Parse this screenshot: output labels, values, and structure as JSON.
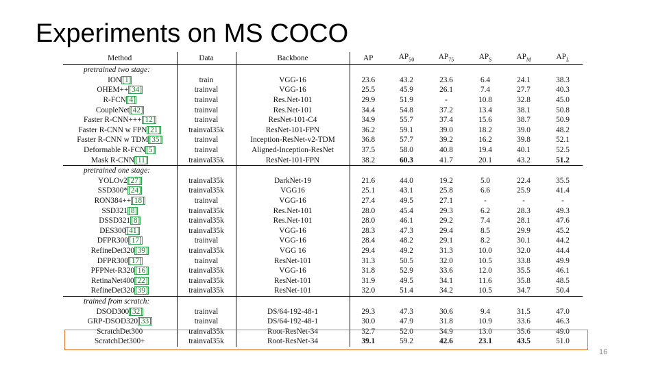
{
  "slide": {
    "title": "Experiments on MS COCO",
    "page_number": "16",
    "highlight_color": "#e8772e"
  },
  "table": {
    "headers": [
      "Method",
      "Data",
      "Backbone",
      "AP",
      "AP50",
      "AP75",
      "APS",
      "APM",
      "APL"
    ],
    "groups": [
      {
        "label": "pretrained two stage:",
        "rows": [
          {
            "method": "ION",
            "ref": "[1]",
            "data": "train",
            "backbone": "VGG-16",
            "vals": [
              "23.6",
              "43.2",
              "23.6",
              "6.4",
              "24.1",
              "38.3"
            ],
            "bold": []
          },
          {
            "method": "OHEM++",
            "ref": "[34]",
            "data": "trainval",
            "backbone": "VGG-16",
            "vals": [
              "25.5",
              "45.9",
              "26.1",
              "7.4",
              "27.7",
              "40.3"
            ],
            "bold": []
          },
          {
            "method": "R-FCN",
            "ref": "[4]",
            "data": "trainval",
            "backbone": "Res.Net-101",
            "vals": [
              "29.9",
              "51.9",
              "-",
              "10.8",
              "32.8",
              "45.0"
            ],
            "bold": []
          },
          {
            "method": "CoupleNet",
            "ref": "[42]",
            "data": "trainval",
            "backbone": "Res.Net-101",
            "vals": [
              "34.4",
              "54.8",
              "37.2",
              "13.4",
              "38.1",
              "50.8"
            ],
            "bold": []
          },
          {
            "method": "Faster R-CNN+++",
            "ref": "[12]",
            "data": "trainval",
            "backbone": "ResNet-101-C4",
            "vals": [
              "34.9",
              "55.7",
              "37.4",
              "15.6",
              "38.7",
              "50.9"
            ],
            "bold": []
          },
          {
            "method": "Faster R-CNN w FPN",
            "ref": "[21]",
            "data": "trainval35k",
            "backbone": "ResNet-101-FPN",
            "vals": [
              "36.2",
              "59.1",
              "39.0",
              "18.2",
              "39.0",
              "48.2"
            ],
            "bold": []
          },
          {
            "method": "Faster R-CNN w TDM",
            "ref": "[35]",
            "data": "trainval",
            "backbone": "Inception-ResNet-v2-TDM",
            "vals": [
              "36.8",
              "57.7",
              "39.2",
              "16.2",
              "39.8",
              "52.1"
            ],
            "bold": []
          },
          {
            "method": "Deformable R-FCN",
            "ref": "[5]",
            "data": "trainval",
            "backbone": "Aligned-Inception-ResNet",
            "vals": [
              "37.5",
              "58.0",
              "40.8",
              "19.4",
              "40.1",
              "52.5"
            ],
            "bold": []
          },
          {
            "method": "Mask R-CNN",
            "ref": "[11]",
            "data": "trainval35k",
            "backbone": "ResNet-101-FPN",
            "vals": [
              "38.2",
              "60.3",
              "41.7",
              "20.1",
              "43.2",
              "51.2"
            ],
            "bold": [
              1,
              5
            ]
          }
        ]
      },
      {
        "label": "pretrained one stage:",
        "rows": [
          {
            "method": "YOLOv2",
            "ref": "[27]",
            "data": "trainval35k",
            "backbone": "DarkNet-19",
            "vals": [
              "21.6",
              "44.0",
              "19.2",
              "5.0",
              "22.4",
              "35.5"
            ],
            "bold": []
          },
          {
            "method": "SSD300*",
            "ref": "[24]",
            "data": "trainval35k",
            "backbone": "VGG16",
            "vals": [
              "25.1",
              "43.1",
              "25.8",
              "6.6",
              "25.9",
              "41.4"
            ],
            "bold": []
          },
          {
            "method": "RON384++",
            "ref": "[18]",
            "data": "trainval",
            "backbone": "VGG-16",
            "vals": [
              "27.4",
              "49.5",
              "27.1",
              "-",
              "-",
              "-"
            ],
            "bold": []
          },
          {
            "method": "SSD321",
            "ref": "[8]",
            "data": "trainval35k",
            "backbone": "Res.Net-101",
            "vals": [
              "28.0",
              "45.4",
              "29.3",
              "6.2",
              "28.3",
              "49.3"
            ],
            "bold": []
          },
          {
            "method": "DSSD321",
            "ref": "[8]",
            "data": "trainval35k",
            "backbone": "Res.Net-101",
            "vals": [
              "28.0",
              "46.1",
              "29.2",
              "7.4",
              "28.1",
              "47.6"
            ],
            "bold": []
          },
          {
            "method": "DES300",
            "ref": "[41]",
            "data": "trainval35k",
            "backbone": "VGG-16",
            "vals": [
              "28.3",
              "47.3",
              "29.4",
              "8.5",
              "29.9",
              "45.2"
            ],
            "bold": []
          },
          {
            "method": "DFPR300",
            "ref": "[17]",
            "data": "trainval",
            "backbone": "VGG-16",
            "vals": [
              "28.4",
              "48.2",
              "29.1",
              "8.2",
              "30.1",
              "44.2"
            ],
            "bold": []
          },
          {
            "method": "RefineDet320",
            "ref": "[39]",
            "data": "trainval35k",
            "backbone": "VGG 16",
            "vals": [
              "29.4",
              "49.2",
              "31.3",
              "10.0",
              "32.0",
              "44.4"
            ],
            "bold": []
          },
          {
            "method": "DFPR300",
            "ref": "[17]",
            "data": "trainval",
            "backbone": "ResNet-101",
            "vals": [
              "31.3",
              "50.5",
              "32.0",
              "10.5",
              "33.8",
              "49.9"
            ],
            "bold": []
          },
          {
            "method": "PFPNet-R320",
            "ref": "[16]",
            "data": "trainval35k",
            "backbone": "VGG-16",
            "vals": [
              "31.8",
              "52.9",
              "33.6",
              "12.0",
              "35.5",
              "46.1"
            ],
            "bold": []
          },
          {
            "method": "RetinaNet400",
            "ref": "[22]",
            "data": "trainval35k",
            "backbone": "ResNet-101",
            "vals": [
              "31.9",
              "49.5",
              "34.1",
              "11.6",
              "35.8",
              "48.5"
            ],
            "bold": []
          },
          {
            "method": "RefineDet320",
            "ref": "[39]",
            "data": "trainval35k",
            "backbone": "ResNet-101",
            "vals": [
              "32.0",
              "51.4",
              "34.2",
              "10.5",
              "34.7",
              "50.4"
            ],
            "bold": []
          }
        ]
      },
      {
        "label": "trained from scratch:",
        "rows": [
          {
            "method": "DSOD300",
            "ref": "[32]",
            "data": "trainval",
            "backbone": "DS/64-192-48-1",
            "vals": [
              "29.3",
              "47.3",
              "30.6",
              "9.4",
              "31.5",
              "47.0"
            ],
            "bold": []
          },
          {
            "method": "GRP-DSOD320",
            "ref": "[33]",
            "data": "trainval",
            "backbone": "DS/64-192-48-1",
            "vals": [
              "30.0",
              "47.9",
              "31.8",
              "10.9",
              "33.6",
              "46.3"
            ],
            "bold": []
          },
          {
            "method": "ScratchDet300",
            "ref": "",
            "data": "trainval35k",
            "backbone": "Root-ResNet-34",
            "vals": [
              "32.7",
              "52.0",
              "34.9",
              "13.0",
              "35.6",
              "49.0"
            ],
            "bold": []
          },
          {
            "method": "ScratchDet300+",
            "ref": "",
            "data": "trainval35k",
            "backbone": "Root-ResNet-34",
            "vals": [
              "39.1",
              "59.2",
              "42.6",
              "23.1",
              "43.5",
              "51.0"
            ],
            "bold": [
              0,
              2,
              3,
              4
            ]
          }
        ]
      }
    ]
  }
}
